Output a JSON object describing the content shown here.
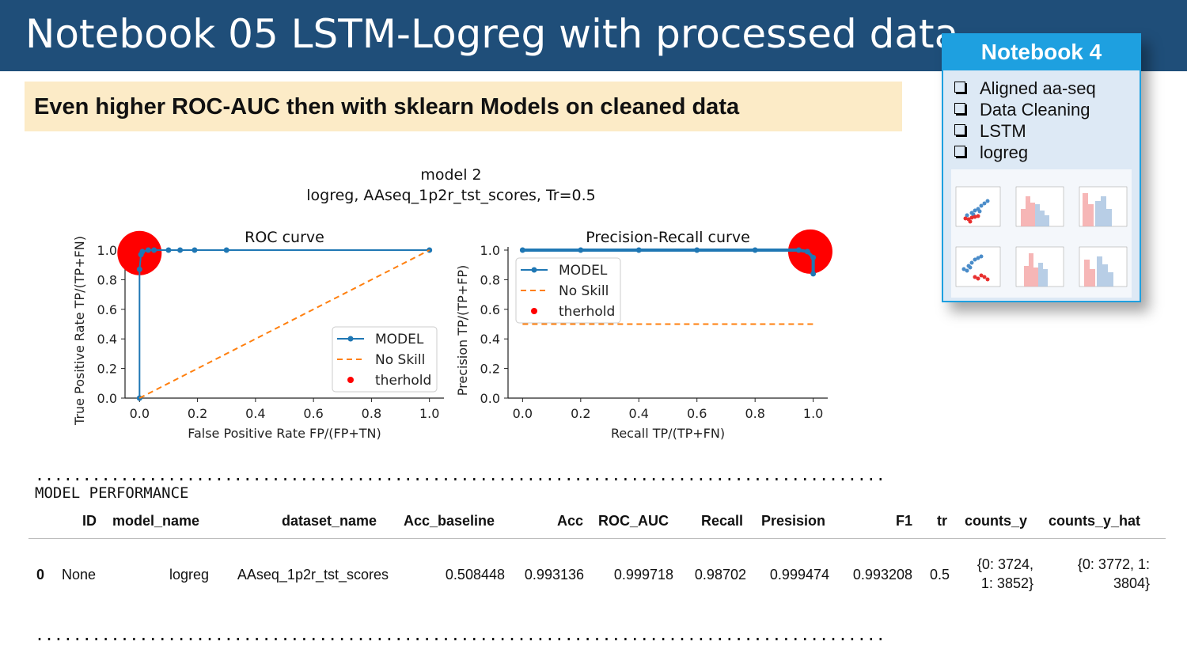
{
  "slide": {
    "title": "Notebook 05 LSTM-Logreg with processed data",
    "subtitle": "Even higher ROC-AUC then with sklearn Models on cleaned data"
  },
  "notebook_card": {
    "title": "Notebook 4",
    "items": [
      "Aligned aa-seq",
      "Data Cleaning",
      "LSTM",
      "logreg"
    ]
  },
  "figure": {
    "suptitle_line1": "model 2",
    "suptitle_line2": "logreg, AAseq_1p2r_tst_scores, Tr=0.5"
  },
  "chart_data": [
    {
      "type": "line",
      "title": "ROC curve",
      "xlabel": "False Positive Rate  FP/(FP+TN)",
      "ylabel": "True Positive Rate TP/(TP+FN)",
      "xlim": [
        0,
        1
      ],
      "ylim": [
        0,
        1
      ],
      "xticks": [
        "0.0",
        "0.2",
        "0.4",
        "0.6",
        "0.8",
        "1.0"
      ],
      "yticks": [
        "0.0",
        "0.2",
        "0.4",
        "0.6",
        "0.8",
        "1.0"
      ],
      "legend": [
        "MODEL",
        "No Skill",
        "therhold"
      ],
      "legend_position": "lower-right",
      "series": [
        {
          "name": "MODEL",
          "x": [
            0,
            0,
            0.005,
            0.01,
            0.03,
            0.05,
            0.1,
            0.14,
            0.19,
            0.3,
            1.0
          ],
          "y": [
            0,
            0.87,
            0.97,
            0.99,
            1.0,
            1.0,
            1.0,
            1.0,
            1.0,
            1.0,
            1.0
          ]
        },
        {
          "name": "No Skill",
          "x": [
            0,
            1
          ],
          "y": [
            0,
            1
          ]
        },
        {
          "name": "therhold",
          "x": [
            0.0
          ],
          "y": [
            0.98
          ]
        }
      ],
      "colors": {
        "MODEL": "#1f77b4",
        "No Skill": "#ff7f0e",
        "therhold": "#ff0000"
      }
    },
    {
      "type": "line",
      "title": "Precision-Recall curve",
      "xlabel": "Recall TP/(TP+FN)",
      "ylabel": "Precision TP/(TP+FP)",
      "xlim": [
        0,
        1
      ],
      "ylim": [
        0,
        1
      ],
      "xticks": [
        "0.0",
        "0.2",
        "0.4",
        "0.6",
        "0.8",
        "1.0"
      ],
      "yticks": [
        "0.0",
        "0.2",
        "0.4",
        "0.6",
        "0.8",
        "1.0"
      ],
      "legend": [
        "MODEL",
        "No Skill",
        "therhold"
      ],
      "legend_position": "upper-left",
      "series": [
        {
          "name": "MODEL",
          "x": [
            0.0,
            0.2,
            0.4,
            0.6,
            0.8,
            0.95,
            0.98,
            1.0,
            1.0
          ],
          "y": [
            1.0,
            1.0,
            1.0,
            1.0,
            1.0,
            1.0,
            0.99,
            0.95,
            0.84
          ]
        },
        {
          "name": "No Skill",
          "x": [
            0,
            1
          ],
          "y": [
            0.5,
            0.5
          ]
        },
        {
          "name": "therhold",
          "x": [
            0.99
          ],
          "y": [
            0.99
          ]
        }
      ],
      "colors": {
        "MODEL": "#1f77b4",
        "No Skill": "#ff7f0e",
        "therhold": "#ff0000"
      }
    }
  ],
  "output": {
    "dots": "..........................................................................................",
    "heading": "MODEL PERFORMANCE",
    "columns": [
      "ID",
      "model_name",
      "dataset_name",
      "Acc_baseline",
      "Acc",
      "ROC_AUC",
      "Recall",
      "Presision",
      "F1",
      "tr",
      "counts_y",
      "counts_y_hat"
    ],
    "row": {
      "index": "0",
      "id": "None",
      "model_name": "logreg",
      "dataset_name": "AAseq_1p2r_tst_scores",
      "acc_baseline": "0.508448",
      "acc": "0.993136",
      "roc_auc": "0.999718",
      "recall": "0.98702",
      "presision": "0.999474",
      "f1": "0.993208",
      "tr": "0.5",
      "counts_y_l1": "{0: 3724,",
      "counts_y_l2": "1: 3852}",
      "counts_y_hat_l1": "{0: 3772, 1:",
      "counts_y_hat_l2": "3804}"
    }
  }
}
